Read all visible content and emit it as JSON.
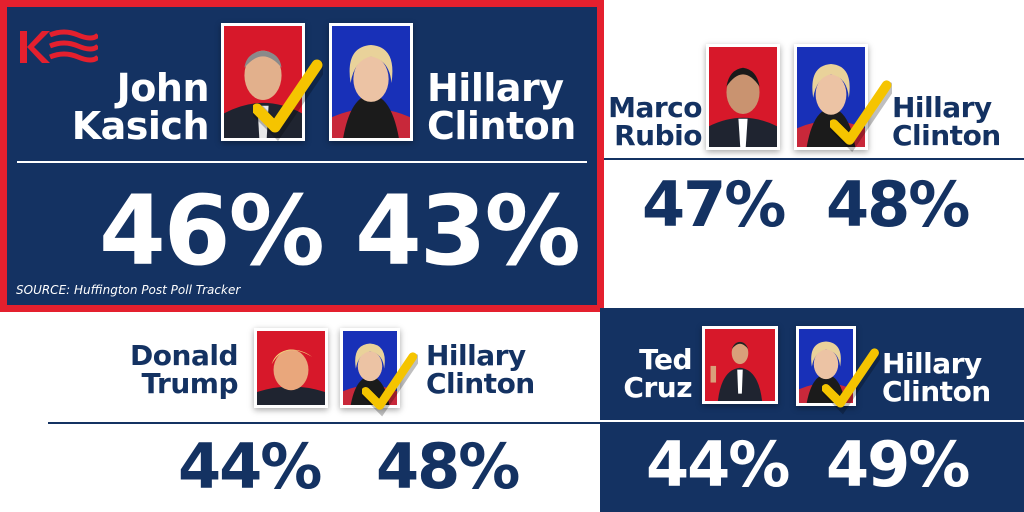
{
  "source": "SOURCE: Huffington Post Poll Tracker",
  "matchups": [
    {
      "candidate_line1": "John",
      "candidate_line2": "Kasich",
      "candidate_pct": "46%",
      "opponent_line1": "Hillary",
      "opponent_line2": "Clinton",
      "opponent_pct": "43%"
    },
    {
      "candidate_line1": "Marco",
      "candidate_line2": "Rubio",
      "candidate_pct": "47%",
      "opponent_line1": "Hillary",
      "opponent_line2": "Clinton",
      "opponent_pct": "48%"
    },
    {
      "candidate_line1": "Donald",
      "candidate_line2": "Trump",
      "candidate_pct": "44%",
      "opponent_line1": "Hillary",
      "opponent_line2": "Clinton",
      "opponent_pct": "48%"
    },
    {
      "candidate_line1": "Ted",
      "candidate_line2": "Cruz",
      "candidate_pct": "44%",
      "opponent_line1": "Hillary",
      "opponent_line2": "Clinton",
      "opponent_pct": "49%"
    }
  ],
  "colors": {
    "navy": "#143262",
    "highlight_border": "#e4202e",
    "check": "#f5c400",
    "photo_red": "#d7182a",
    "photo_blue": "#1830b8"
  },
  "icons": [
    "kasich-logo-icon",
    "checkmark-icon",
    "candidate-photo-icon"
  ]
}
